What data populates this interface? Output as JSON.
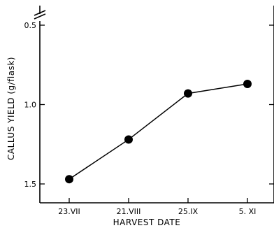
{
  "chart_data": {
    "type": "line",
    "title": "",
    "xlabel": "HARVEST DATE",
    "ylabel": "CALLUS YIELD (g/flask)",
    "categories": [
      "23.VII",
      "21.VIII",
      "25.IX",
      "5. XI"
    ],
    "series": [
      {
        "values": [
          1.47,
          1.22,
          0.93,
          0.87
        ]
      }
    ],
    "yticks": [
      0.5,
      1.0,
      1.5
    ],
    "ytick_labels": [
      "0.5",
      "1.0",
      "1.5"
    ],
    "ylim": [
      0.43,
      1.52
    ],
    "y_inverted": true,
    "y_axis_break": true,
    "grid": false,
    "marker": "filled-circle"
  }
}
